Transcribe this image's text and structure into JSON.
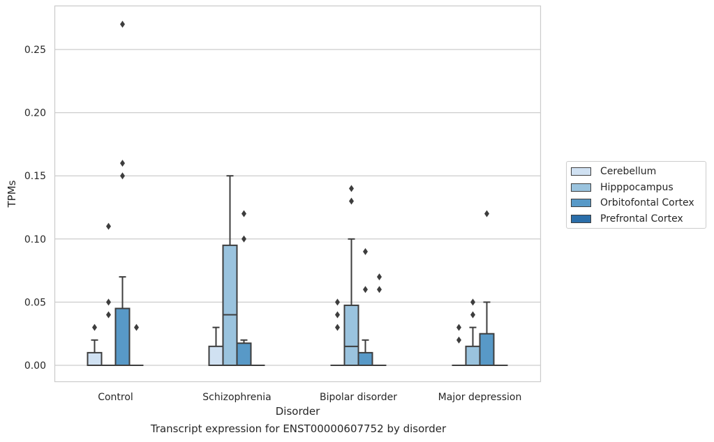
{
  "chart_data": {
    "type": "box",
    "xlabel": "Disorder",
    "ylabel": "TPMs",
    "ylim": [
      -0.013,
      0.284
    ],
    "yticks": [
      0.0,
      0.05,
      0.1,
      0.15,
      0.2,
      0.25
    ],
    "ytick_labels": [
      "0.00",
      "0.05",
      "0.10",
      "0.15",
      "0.20",
      "0.25"
    ],
    "grid": "horizontal",
    "legend_position": "right",
    "categories": [
      "Control",
      "Schizophrenia",
      "Bipolar disorder",
      "Major depression"
    ],
    "series": [
      {
        "name": "Cerebellum",
        "color": "#d0e1f2",
        "boxes": [
          {
            "q1": 0.0,
            "median": 0.0,
            "q3": 0.01,
            "whisker_low": 0.0,
            "whisker_high": 0.02,
            "outliers": [
              0.03
            ]
          },
          {
            "q1": 0.0,
            "median": 0.0,
            "q3": 0.015,
            "whisker_low": 0.0,
            "whisker_high": 0.03,
            "outliers": []
          },
          {
            "q1": 0.0,
            "median": 0.0,
            "q3": 0.0,
            "whisker_low": 0.0,
            "whisker_high": 0.0,
            "outliers": [
              0.03,
              0.04,
              0.05
            ]
          },
          {
            "q1": 0.0,
            "median": 0.0,
            "q3": 0.0,
            "whisker_low": 0.0,
            "whisker_high": 0.0,
            "outliers": [
              0.02,
              0.03
            ]
          }
        ]
      },
      {
        "name": "Hipppocampus",
        "color": "#9ac3de",
        "boxes": [
          {
            "q1": 0.0,
            "median": 0.0,
            "q3": 0.0,
            "whisker_low": 0.0,
            "whisker_high": 0.0,
            "outliers": [
              0.04,
              0.05,
              0.11
            ]
          },
          {
            "q1": 0.0,
            "median": 0.04,
            "q3": 0.095,
            "whisker_low": 0.0,
            "whisker_high": 0.15,
            "outliers": []
          },
          {
            "q1": 0.0,
            "median": 0.015,
            "q3": 0.0475,
            "whisker_low": 0.0,
            "whisker_high": 0.1,
            "outliers": [
              0.13,
              0.14
            ]
          },
          {
            "q1": 0.0,
            "median": 0.0,
            "q3": 0.015,
            "whisker_low": 0.0,
            "whisker_high": 0.03,
            "outliers": [
              0.04,
              0.05
            ]
          }
        ]
      },
      {
        "name": "Orbitofontal Cortex",
        "color": "#5899c7",
        "boxes": [
          {
            "q1": 0.0,
            "median": 0.0,
            "q3": 0.045,
            "whisker_low": 0.0,
            "whisker_high": 0.07,
            "outliers": [
              0.15,
              0.16,
              0.27
            ]
          },
          {
            "q1": 0.0,
            "median": 0.0,
            "q3": 0.0175,
            "whisker_low": 0.0,
            "whisker_high": 0.02,
            "outliers": [
              0.1,
              0.12
            ]
          },
          {
            "q1": 0.0,
            "median": 0.0,
            "q3": 0.01,
            "whisker_low": 0.0,
            "whisker_high": 0.02,
            "outliers": [
              0.06,
              0.09
            ]
          },
          {
            "q1": 0.0,
            "median": 0.0,
            "q3": 0.025,
            "whisker_low": 0.0,
            "whisker_high": 0.05,
            "outliers": [
              0.12
            ]
          }
        ]
      },
      {
        "name": "Prefrontal Cortex",
        "color": "#2b6ea9",
        "boxes": [
          {
            "q1": 0.0,
            "median": 0.0,
            "q3": 0.0,
            "whisker_low": 0.0,
            "whisker_high": 0.0,
            "outliers": [
              0.03
            ]
          },
          {
            "q1": 0.0,
            "median": 0.0,
            "q3": 0.0,
            "whisker_low": 0.0,
            "whisker_high": 0.0,
            "outliers": []
          },
          {
            "q1": 0.0,
            "median": 0.0,
            "q3": 0.0,
            "whisker_low": 0.0,
            "whisker_high": 0.0,
            "outliers": [
              0.06,
              0.07
            ]
          },
          {
            "q1": 0.0,
            "median": 0.0,
            "q3": 0.0,
            "whisker_low": 0.0,
            "whisker_high": 0.0,
            "outliers": []
          }
        ]
      }
    ],
    "caption": "Transcript expression for ENST00000607752 by disorder",
    "colors": {
      "box_edge": "#3d3d3d",
      "grid": "#cccccc",
      "spine": "#cccccc"
    }
  }
}
